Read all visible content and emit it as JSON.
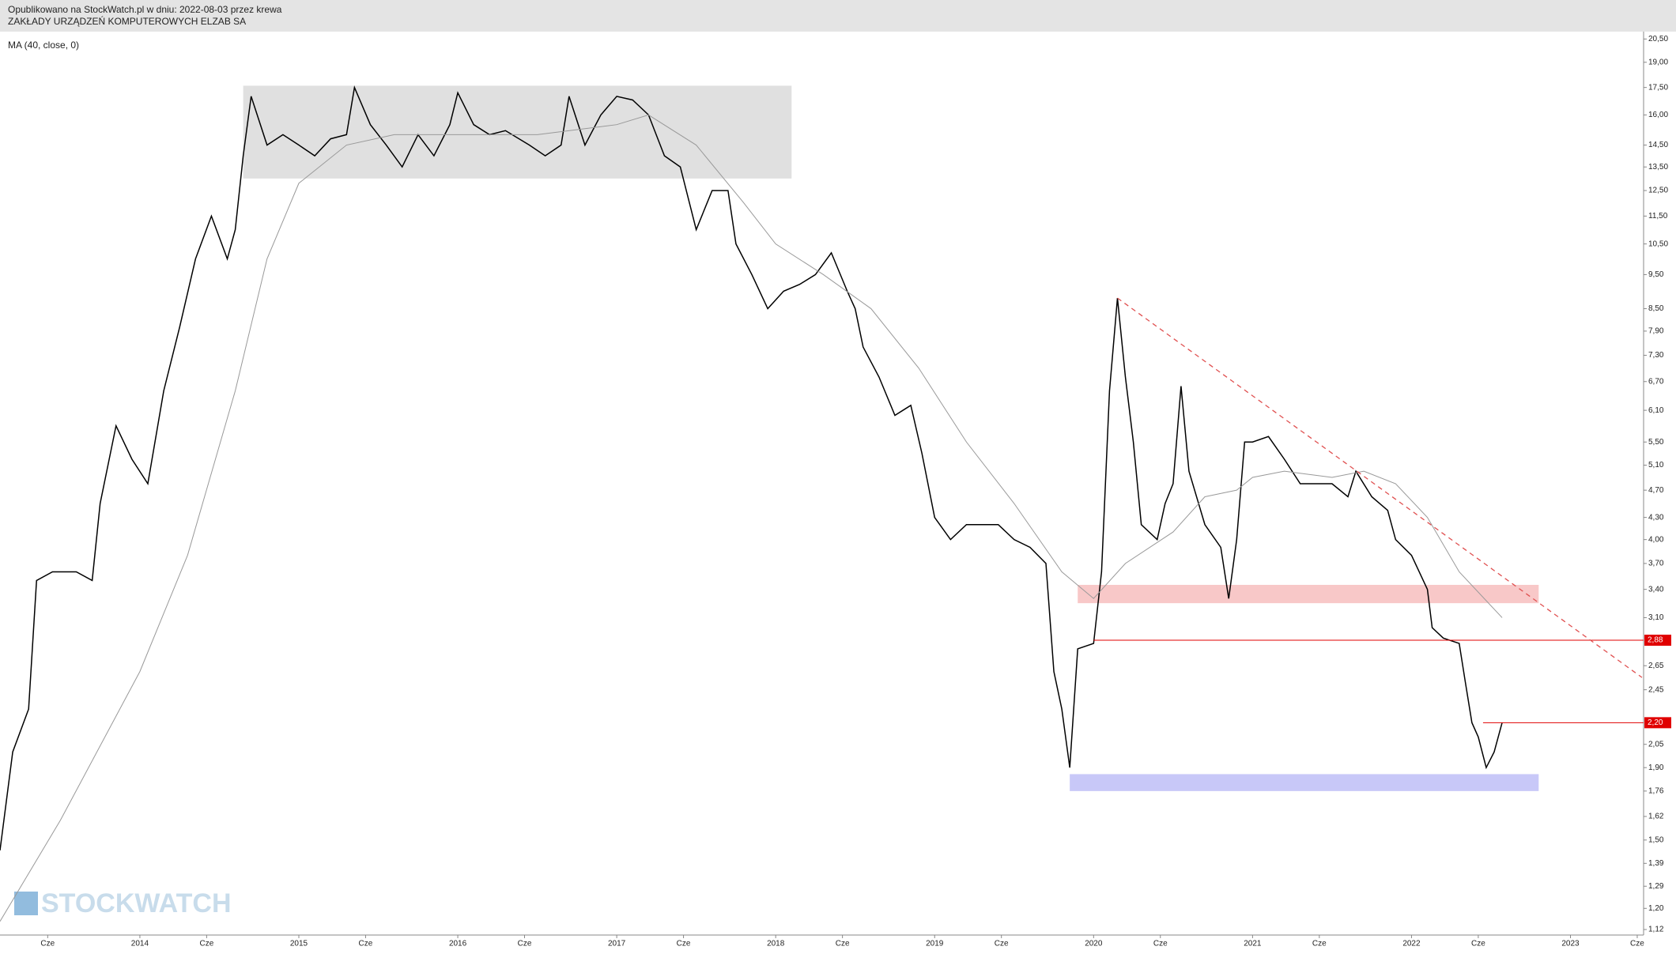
{
  "header": {
    "published": "Opublikowano na StockWatch.pl w dniu: 2022-08-03 przez krewa",
    "company": "ZAKŁADY URZĄDZEŃ KOMPUTEROWYCH ELZAB SA",
    "logo": "STOCKWATCH"
  },
  "chart_data": {
    "type": "line",
    "log_scale": true,
    "xlim": [
      2013.12,
      2023.46
    ],
    "ylim": [
      1.1,
      21
    ],
    "xticks": [
      {
        "value": 2013.42,
        "label": "Cze"
      },
      {
        "value": 2014,
        "label": "2014"
      },
      {
        "value": 2014.42,
        "label": "Cze"
      },
      {
        "value": 2015,
        "label": "2015"
      },
      {
        "value": 2015.42,
        "label": "Cze"
      },
      {
        "value": 2016,
        "label": "2016"
      },
      {
        "value": 2016.42,
        "label": "Cze"
      },
      {
        "value": 2017,
        "label": "2017"
      },
      {
        "value": 2017.42,
        "label": "Cze"
      },
      {
        "value": 2018,
        "label": "2018"
      },
      {
        "value": 2018.42,
        "label": "Cze"
      },
      {
        "value": 2019,
        "label": "2019"
      },
      {
        "value": 2019.42,
        "label": "Cze"
      },
      {
        "value": 2020,
        "label": "2020"
      },
      {
        "value": 2020.42,
        "label": "Cze"
      },
      {
        "value": 2021,
        "label": "2021"
      },
      {
        "value": 2021.42,
        "label": "Cze"
      },
      {
        "value": 2022,
        "label": "2022"
      },
      {
        "value": 2022.42,
        "label": "Cze"
      },
      {
        "value": 2023,
        "label": "2023"
      },
      {
        "value": 2023.42,
        "label": "Cze"
      }
    ],
    "yticks": [
      {
        "value": 20.5,
        "label": "20,50"
      },
      {
        "value": 19,
        "label": "19,00"
      },
      {
        "value": 17.5,
        "label": "17,50"
      },
      {
        "value": 16,
        "label": "16,00"
      },
      {
        "value": 14.5,
        "label": "14,50"
      },
      {
        "value": 13.5,
        "label": "13,50"
      },
      {
        "value": 12.5,
        "label": "12,50"
      },
      {
        "value": 11.5,
        "label": "11,50"
      },
      {
        "value": 10.5,
        "label": "10,50"
      },
      {
        "value": 9.5,
        "label": "9,50"
      },
      {
        "value": 8.5,
        "label": "8,50"
      },
      {
        "value": 7.9,
        "label": "7,90"
      },
      {
        "value": 7.3,
        "label": "7,30"
      },
      {
        "value": 6.7,
        "label": "6,70"
      },
      {
        "value": 6.1,
        "label": "6,10"
      },
      {
        "value": 5.5,
        "label": "5,50"
      },
      {
        "value": 5.1,
        "label": "5,10"
      },
      {
        "value": 4.7,
        "label": "4,70"
      },
      {
        "value": 4.3,
        "label": "4,30"
      },
      {
        "value": 4,
        "label": "4,00"
      },
      {
        "value": 3.7,
        "label": "3,70"
      },
      {
        "value": 3.4,
        "label": "3,40"
      },
      {
        "value": 3.1,
        "label": "3,10"
      },
      {
        "value": 2.65,
        "label": "2,65"
      },
      {
        "value": 2.45,
        "label": "2,45"
      },
      {
        "value": 2.05,
        "label": "2,05"
      },
      {
        "value": 1.9,
        "label": "1,90"
      },
      {
        "value": 1.76,
        "label": "1,76"
      },
      {
        "value": 1.62,
        "label": "1,62"
      },
      {
        "value": 1.5,
        "label": "1,50"
      },
      {
        "value": 1.39,
        "label": "1,39"
      },
      {
        "value": 1.29,
        "label": "1,29"
      },
      {
        "value": 1.2,
        "label": "1,20"
      },
      {
        "value": 1.12,
        "label": "1,12"
      }
    ],
    "series": [
      {
        "color": "#000000",
        "x": [
          2013.12,
          2013.2,
          2013.3,
          2013.35,
          2013.45,
          2013.6,
          2013.7,
          2013.75,
          2013.85,
          2013.95,
          2014.05,
          2014.15,
          2014.25,
          2014.35,
          2014.45,
          2014.55,
          2014.6,
          2014.65,
          2014.7,
          2014.8,
          2014.9,
          2015.0,
          2015.1,
          2015.2,
          2015.3,
          2015.35,
          2015.45,
          2015.55,
          2015.65,
          2015.75,
          2015.85,
          2015.95,
          2016.0,
          2016.1,
          2016.2,
          2016.3,
          2016.45,
          2016.55,
          2016.65,
          2016.7,
          2016.8,
          2016.9,
          2017.0,
          2017.1,
          2017.2,
          2017.3,
          2017.4,
          2017.5,
          2017.6,
          2017.7,
          2017.75,
          2017.85,
          2017.95,
          2018.05,
          2018.15,
          2018.25,
          2018.35,
          2018.45,
          2018.5,
          2018.55,
          2018.65,
          2018.75,
          2018.85,
          2018.92,
          2019.0,
          2019.1,
          2019.2,
          2019.3,
          2019.4,
          2019.5,
          2019.6,
          2019.7,
          2019.75,
          2019.8,
          2019.85,
          2019.9,
          2020.0,
          2020.05,
          2020.1,
          2020.15,
          2020.2,
          2020.25,
          2020.3,
          2020.4,
          2020.45,
          2020.5,
          2020.55,
          2020.6,
          2020.7,
          2020.8,
          2020.85,
          2020.9,
          2020.95,
          2021.0,
          2021.1,
          2021.2,
          2021.3,
          2021.4,
          2021.5,
          2021.6,
          2021.65,
          2021.75,
          2021.85,
          2021.9,
          2022.0,
          2022.1,
          2022.13,
          2022.2,
          2022.3,
          2022.34,
          2022.38,
          2022.42,
          2022.47,
          2022.52,
          2022.57
        ],
        "values": [
          1.45,
          2.0,
          2.3,
          3.5,
          3.6,
          3.6,
          3.5,
          4.5,
          5.8,
          5.2,
          4.8,
          6.5,
          8.0,
          10.0,
          11.5,
          10.0,
          11.0,
          14.0,
          17.0,
          14.5,
          15.0,
          14.5,
          14.0,
          14.8,
          15.0,
          17.5,
          15.5,
          14.5,
          13.5,
          15.0,
          14.0,
          15.5,
          17.2,
          15.5,
          15.0,
          15.2,
          14.5,
          14.0,
          14.5,
          17.0,
          14.5,
          16.0,
          17.0,
          16.8,
          16.0,
          14.0,
          13.5,
          11.0,
          12.5,
          12.5,
          10.5,
          9.5,
          8.5,
          9.0,
          9.2,
          9.5,
          10.2,
          9.0,
          8.5,
          7.5,
          6.8,
          6.0,
          6.2,
          5.3,
          4.3,
          4.0,
          4.2,
          4.2,
          4.2,
          4.0,
          3.9,
          3.7,
          2.6,
          2.3,
          1.9,
          2.8,
          2.85,
          3.6,
          6.5,
          8.8,
          6.8,
          5.5,
          4.2,
          4.0,
          4.5,
          4.8,
          6.6,
          5.0,
          4.2,
          3.9,
          3.3,
          4.0,
          5.5,
          5.5,
          5.6,
          5.2,
          4.8,
          4.8,
          4.8,
          4.6,
          5.0,
          4.6,
          4.4,
          4.0,
          3.8,
          3.4,
          3.0,
          2.9,
          2.85,
          2.5,
          2.2,
          2.1,
          1.9,
          2.0,
          2.2
        ]
      },
      {
        "name": "MA (40, close, 0)",
        "color": "#999999",
        "x": [
          2013.12,
          2013.5,
          2014.0,
          2014.3,
          2014.6,
          2014.8,
          2015.0,
          2015.3,
          2015.6,
          2016.0,
          2016.5,
          2017.0,
          2017.2,
          2017.5,
          2017.8,
          2018.0,
          2018.3,
          2018.6,
          2018.9,
          2019.2,
          2019.5,
          2019.8,
          2020.0,
          2020.2,
          2020.5,
          2020.7,
          2020.9,
          2021.0,
          2021.2,
          2021.5,
          2021.7,
          2021.9,
          2022.1,
          2022.3,
          2022.57
        ],
        "values": [
          1.15,
          1.6,
          2.6,
          3.8,
          6.5,
          10.0,
          12.8,
          14.5,
          15.0,
          15.0,
          15.0,
          15.5,
          16.0,
          14.5,
          12.0,
          10.5,
          9.5,
          8.5,
          7.0,
          5.5,
          4.5,
          3.6,
          3.3,
          3.7,
          4.1,
          4.6,
          4.7,
          4.9,
          5.0,
          4.9,
          5.0,
          4.8,
          4.3,
          3.6,
          3.1
        ]
      }
    ],
    "zones": [
      {
        "color": "#e0e0e0",
        "x": [
          2014.65,
          2018.1
        ],
        "y": [
          13.0,
          17.6
        ]
      },
      {
        "color": "#f8c8c8",
        "x": [
          2019.9,
          2022.8
        ],
        "y": [
          3.25,
          3.45
        ]
      },
      {
        "color": "#c8c8f8",
        "x": [
          2019.85,
          2022.8
        ],
        "y": [
          1.76,
          1.86
        ]
      }
    ],
    "levels": [
      {
        "color": "#e00000",
        "x": 2020.0,
        "y": {
          "value": 2.88,
          "label": "2,88"
        }
      },
      {
        "color": "#e00000",
        "x": 2022.45,
        "y": {
          "value": 2.2,
          "label": "2,20"
        }
      }
    ],
    "trendline": {
      "color": "#e05050",
      "x": [
        2020.15,
        2023.45
      ],
      "y": [
        8.8,
        2.55
      ]
    }
  }
}
